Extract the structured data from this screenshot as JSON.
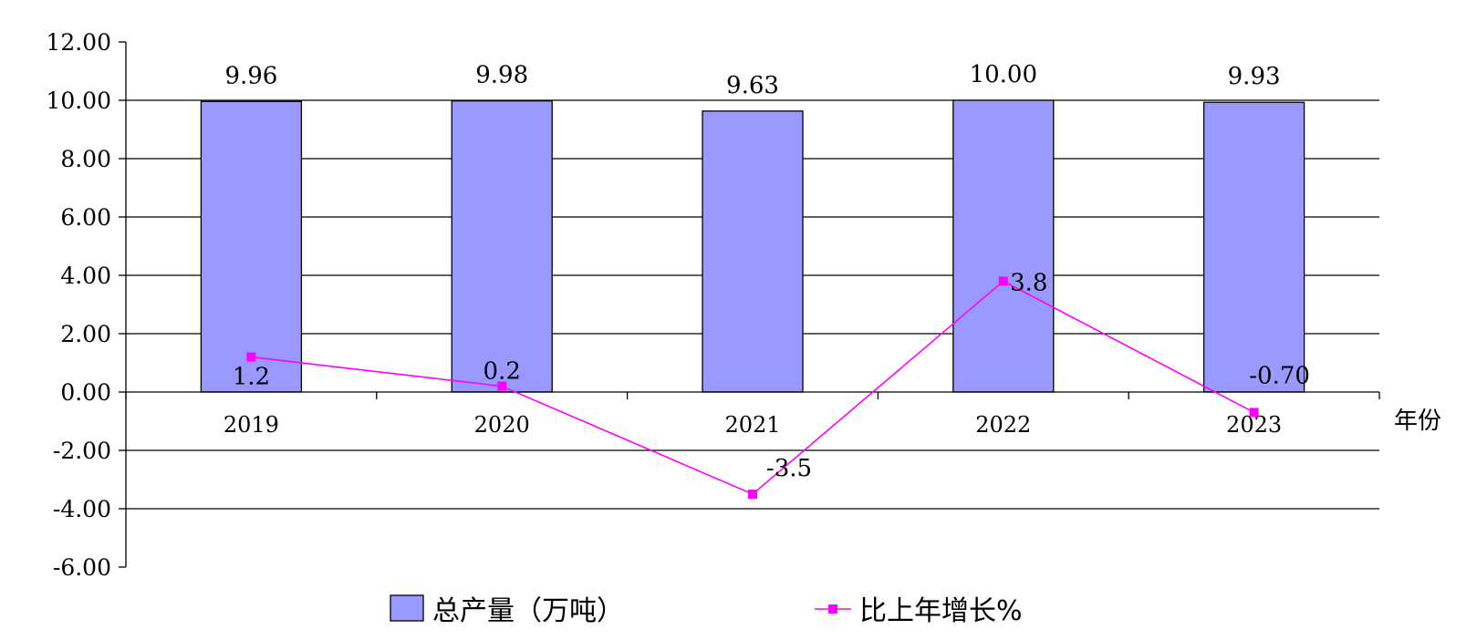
{
  "chart_data": {
    "type": "bar",
    "categories": [
      "2019",
      "2020",
      "2021",
      "2022",
      "2023"
    ],
    "ylim": [
      -6,
      12
    ],
    "yticks": [
      "12.00",
      "10.00",
      "8.00",
      "6.00",
      "4.00",
      "2.00",
      "0.00",
      "-2.00",
      "-4.00",
      "-6.00"
    ],
    "xlabel": "年份",
    "grid": true,
    "legend_position": "bottom",
    "series": [
      {
        "name": "总产量（万吨）",
        "type": "bar",
        "values": [
          9.96,
          9.98,
          9.63,
          10.0,
          9.93
        ],
        "labels": [
          "9.96",
          "9.98",
          "9.63",
          "10.00",
          "9.93"
        ],
        "color": "#9999ff"
      },
      {
        "name": "比上年增长%",
        "type": "line",
        "values": [
          1.2,
          0.2,
          -3.5,
          3.8,
          -0.7
        ],
        "labels": [
          "1.2",
          "0.2",
          "-3.5",
          "3.8",
          "-0.70"
        ],
        "color": "#ff00ff"
      }
    ]
  }
}
